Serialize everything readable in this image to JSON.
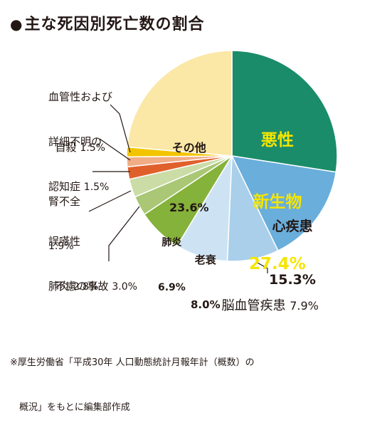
{
  "title": "主な死因別死亡数の割合",
  "footnote_line1": "※厚生労働省「平成30年 人口動態統計月報年計（概数）の",
  "footnote_line2": "　概況」をもとに編集部作成",
  "chart_data": {
    "type": "pie",
    "title": "主な死因別死亡数の割合",
    "unit": "%",
    "start_angle_deg": 0,
    "direction": "clockwise",
    "slices": [
      {
        "label": "悪性新生物",
        "value": 27.4,
        "value_text": "27.4%",
        "color": "#1a8c6a"
      },
      {
        "label": "心疾患",
        "value": 15.3,
        "value_text": "15.3%",
        "color": "#6aaedb"
      },
      {
        "label": "脳血管疾患",
        "value": 7.9,
        "value_text": "7.9%",
        "color": "#a9cfea"
      },
      {
        "label": "老衰",
        "value": 8.0,
        "value_text": "8.0%",
        "color": "#cde3f4"
      },
      {
        "label": "肺炎",
        "value": 6.9,
        "value_text": "6.9%",
        "color": "#85b23a"
      },
      {
        "label": "不慮の事故",
        "value": 3.0,
        "value_text": "3.0%",
        "color": "#a9c775"
      },
      {
        "label": "誤嚥性肺炎",
        "value": 2.8,
        "value_text": "2.8%",
        "color": "#cbdca6"
      },
      {
        "label": "腎不全",
        "value": 1.9,
        "value_text": "1.9%",
        "color": "#e0602b"
      },
      {
        "label": "自殺",
        "value": 1.5,
        "value_text": "1.5%",
        "color": "#f0ad86"
      },
      {
        "label": "血管性および詳細不明の認知症",
        "value": 1.5,
        "value_text": "1.5%",
        "color": "#f2c500"
      },
      {
        "label": "その他",
        "value": 23.6,
        "value_text": "23.6%",
        "color": "#fbe8a6"
      }
    ]
  },
  "labels": {
    "akusei_1": "悪性",
    "akusei_2": "新生物",
    "shinshikkan": "心疾患",
    "noukekkan": "脳血管疾患",
    "rousui": "老衰",
    "haien": "肺炎",
    "furyo": "不慮の事故",
    "goen_1": "誤嚥性",
    "goen_2": "肺炎",
    "jinfuzen": "腎不全",
    "jisatsu": "自殺",
    "ninchi_1": "血管性および",
    "ninchi_2": "詳細不明の",
    "ninchi_3": "認知症",
    "sonota": "その他"
  }
}
